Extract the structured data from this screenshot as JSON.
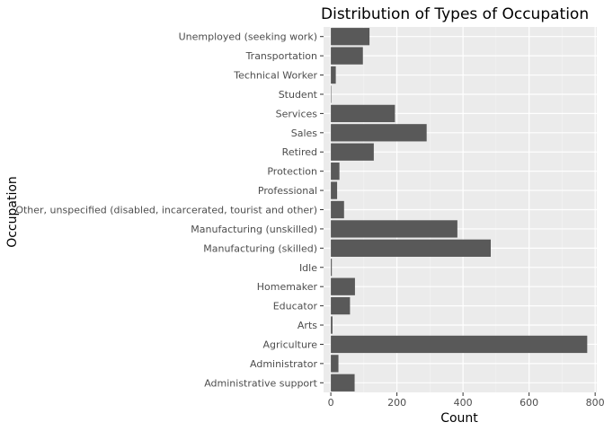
{
  "chart_data": {
    "type": "bar",
    "orientation": "horizontal",
    "title": "Distribution of Types of Occupation",
    "xlabel": "Count",
    "ylabel": "Occupation",
    "categories": [
      "Administrative support",
      "Administrator",
      "Agriculture",
      "Arts",
      "Educator",
      "Homemaker",
      "Idle",
      "Manufacturing (skilled)",
      "Manufacturing (unskilled)",
      "Other, unspecified (disabled, incarcerated, tourist and other)",
      "Professional",
      "Protection",
      "Retired",
      "Sales",
      "Services",
      "Student",
      "Technical Worker",
      "Transportation",
      "Unemployed (seeking work)"
    ],
    "values": [
      72,
      23,
      776,
      5,
      58,
      73,
      3,
      484,
      383,
      40,
      19,
      26,
      130,
      290,
      194,
      1,
      15,
      97,
      117
    ],
    "xlim": [
      -22,
      805
    ],
    "xticks": [
      0,
      200,
      400,
      600,
      800
    ],
    "grid": true,
    "legend": "none",
    "colors": {
      "bar": "#595959",
      "panel": "#ebebeb",
      "grid_major": "#ffffff",
      "text": "#4d4d4d"
    }
  }
}
